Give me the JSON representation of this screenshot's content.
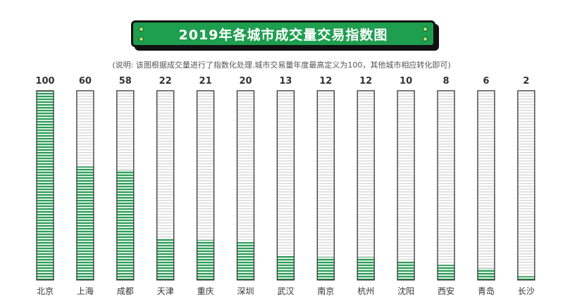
{
  "title": "2019年各城市成交量交易指数图",
  "subtitle": "(说明: 该图根据成交量进行了指数化处理.城市交易量年度最高定义为100，其他城市相应转化即可)",
  "colors": {
    "accent": "#1e9e4f",
    "fill": "#2e9e5a",
    "stripe": "#dcdcdc",
    "outline": "#333333"
  },
  "chart_data": {
    "type": "bar",
    "categories": [
      "北京",
      "上海",
      "成都",
      "天津",
      "重庆",
      "深圳",
      "武汉",
      "南京",
      "杭州",
      "沈阳",
      "西安",
      "青岛",
      "长沙"
    ],
    "values": [
      100,
      60,
      58,
      22,
      21,
      20,
      13,
      12,
      12,
      10,
      8,
      6,
      2
    ],
    "ylim": [
      0,
      100
    ],
    "title": "2019年各城市成交量交易指数图",
    "xlabel": "",
    "ylabel": "",
    "grid": false,
    "legend": "none"
  }
}
